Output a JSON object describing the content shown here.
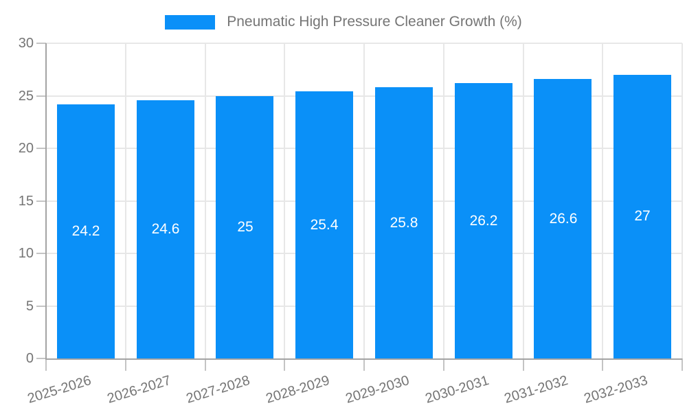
{
  "legend": {
    "label": "Pneumatic High Pressure Cleaner Growth (%)"
  },
  "colors": {
    "bar": "#0A90F8",
    "grid": "#e7e7e7",
    "axis": "#a3a3a3",
    "tick": "#c4c4c4",
    "axis_label": "#757575",
    "value_label": "#ffffff",
    "background": "#ffffff"
  },
  "chart_data": {
    "type": "bar",
    "title": "Pneumatic High Pressure Cleaner Growth (%)",
    "series_name": "Pneumatic High Pressure Cleaner Growth (%)",
    "categories": [
      "2025-2026",
      "2026-2027",
      "2027-2028",
      "2028-2029",
      "2029-2030",
      "2030-2031",
      "2031-2032",
      "2032-2033"
    ],
    "values": [
      24.2,
      24.6,
      25,
      25.4,
      25.8,
      26.2,
      26.6,
      27
    ],
    "value_labels": [
      "24.2",
      "24.6",
      "25",
      "25.4",
      "25.8",
      "26.2",
      "26.6",
      "27"
    ],
    "xlabel": "",
    "ylabel": "",
    "ylim": [
      0,
      30
    ],
    "yticks": [
      0,
      5,
      10,
      15,
      20,
      25,
      30
    ],
    "grid": true,
    "legend_position": "top-center",
    "value_label_position": "inside-middle",
    "xtick_label_rotation_deg": -17
  }
}
